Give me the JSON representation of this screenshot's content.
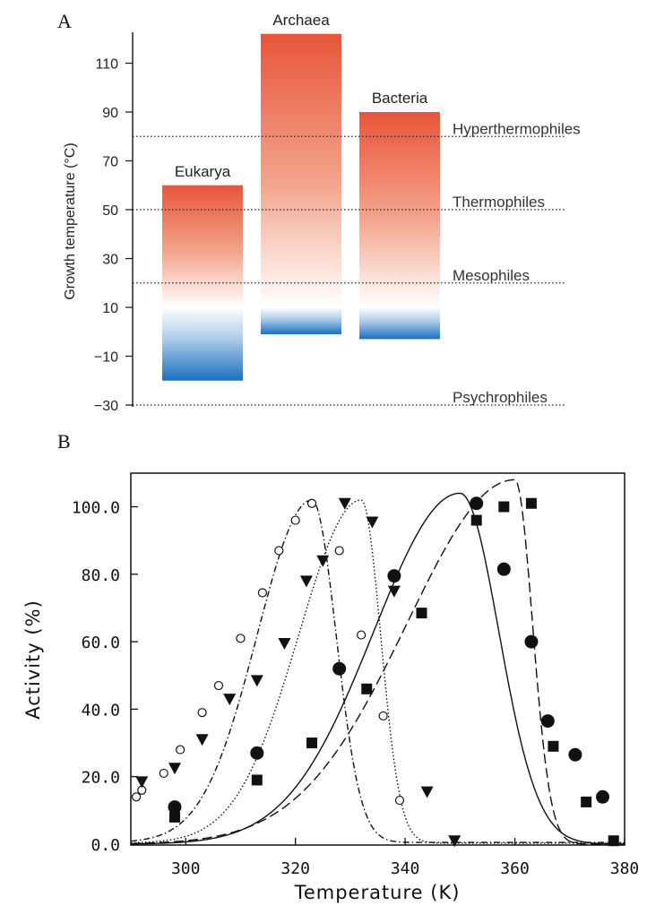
{
  "panel_a_letter": "A",
  "panel_b_letter": "B",
  "chart_data": [
    {
      "type": "bar",
      "panel": "A",
      "ylabel": "Growth temperature (°C)",
      "yticks": [
        110,
        90,
        70,
        50,
        30,
        10,
        -10,
        -30
      ],
      "ytick_labels": [
        "110",
        "90",
        "70",
        "50",
        "30",
        "10",
        "−10",
        "−30"
      ],
      "ylim": [
        -30,
        122
      ],
      "categories": [
        "Eukarya",
        "Archaea",
        "Bacteria"
      ],
      "ranges": [
        {
          "name": "Eukarya",
          "low": -20,
          "high": 60
        },
        {
          "name": "Archaea",
          "low": -1,
          "high": 122
        },
        {
          "name": "Bacteria",
          "low": -3,
          "high": 90
        }
      ],
      "cold_boundary": 10,
      "thresholds": [
        {
          "label": "Hyperthermophiles",
          "value": 80
        },
        {
          "label": "Thermophiles",
          "value": 50
        },
        {
          "label": "Mesophiles",
          "value": 20
        },
        {
          "label": "Psychrophiles",
          "value": -30
        }
      ],
      "colors": {
        "warm": "#e8553a",
        "cold": "#1a6fbd"
      },
      "grid": false,
      "legend": "none"
    },
    {
      "type": "line",
      "panel": "B",
      "xlabel": "Temperature (K)",
      "ylabel": "Activity (%)",
      "xlim": [
        290,
        380
      ],
      "ylim": [
        0,
        110
      ],
      "xticks": [
        300,
        320,
        340,
        360,
        380
      ],
      "xtick_labels": [
        "300",
        "320",
        "340",
        "360",
        "380"
      ],
      "yticks": [
        0,
        20,
        40,
        60,
        80,
        100
      ],
      "ytick_labels": [
        "0.0",
        "20.0",
        "40.0",
        "60.0",
        "80.0",
        "100.0"
      ],
      "grid": false,
      "legend": "none",
      "series": [
        {
          "marker": "open-circle",
          "line": "dash-dot",
          "points": [
            [
              291,
              14
            ],
            [
              292,
              16
            ],
            [
              296,
              21
            ],
            [
              299,
              28
            ],
            [
              303,
              39
            ],
            [
              306,
              47
            ],
            [
              310,
              61
            ],
            [
              314,
              74.5
            ],
            [
              317,
              87
            ],
            [
              320,
              96
            ],
            [
              323,
              101
            ],
            [
              328,
              87
            ],
            [
              332,
              62
            ],
            [
              336,
              38
            ],
            [
              339,
              13
            ]
          ],
          "fit": {
            "peak": 323,
            "height": 102,
            "k_low": 0.071,
            "k_high": 0.16,
            "base": 0.5
          }
        },
        {
          "marker": "filled-triangle-down",
          "line": "dotted",
          "points": [
            [
              292,
              18.5
            ],
            [
              298,
              22.5
            ],
            [
              303,
              31
            ],
            [
              308,
              43
            ],
            [
              313,
              48.5
            ],
            [
              318,
              59.5
            ],
            [
              322,
              78
            ],
            [
              325,
              84
            ],
            [
              329,
              101
            ],
            [
              334,
              95.5
            ],
            [
              338,
              75
            ],
            [
              344,
              15.5
            ],
            [
              349,
              1
            ]
          ],
          "fit": {
            "peak": 332,
            "height": 102,
            "k_low": 0.062,
            "k_high": 0.2,
            "base": 0.3
          }
        },
        {
          "marker": "filled-circle",
          "line": "solid",
          "points": [
            [
              298,
              11
            ],
            [
              313,
              27
            ],
            [
              328,
              52
            ],
            [
              338,
              79.5
            ],
            [
              353,
              101
            ],
            [
              358,
              81.5
            ],
            [
              363,
              60
            ],
            [
              366,
              36.5
            ],
            [
              371,
              26.5
            ],
            [
              376,
              14
            ]
          ],
          "fit": {
            "peak": 350,
            "height": 104,
            "k_low": 0.045,
            "k_high": 0.1,
            "base": 0
          }
        },
        {
          "marker": "filled-square",
          "line": "long-dash",
          "points": [
            [
              298,
              8
            ],
            [
              313,
              19
            ],
            [
              323,
              30
            ],
            [
              333,
              46
            ],
            [
              343,
              68.5
            ],
            [
              353,
              96
            ],
            [
              358,
              100
            ],
            [
              363,
              101
            ],
            [
              367,
              29
            ],
            [
              373,
              12.5
            ],
            [
              378,
              1
            ]
          ],
          "fit": {
            "peak": 360,
            "height": 108,
            "k_low": 0.036,
            "k_high": 0.22,
            "base": 0
          }
        }
      ]
    }
  ]
}
